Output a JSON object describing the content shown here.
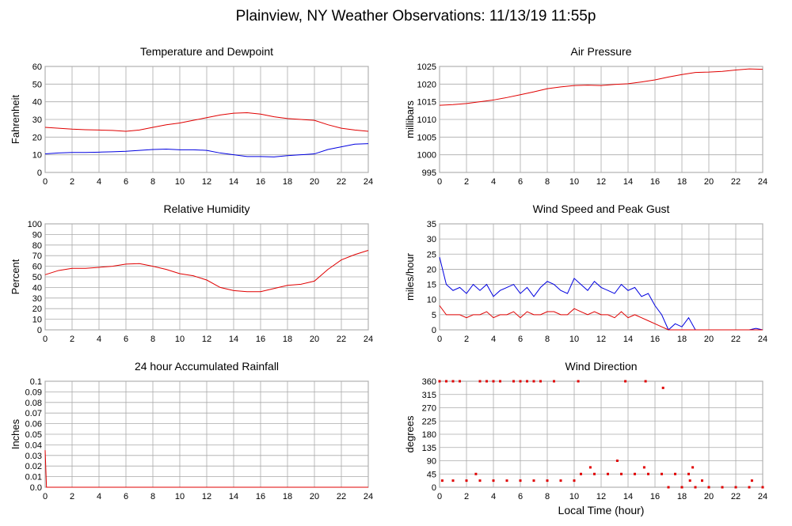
{
  "title": "Plainview, NY Weather Observations: 11/13/19 11:55p",
  "chart_data": [
    {
      "type": "line",
      "title": "Temperature and Dewpoint",
      "ylabel": "Fahrenheit",
      "x": [
        0,
        1,
        2,
        3,
        4,
        5,
        6,
        7,
        8,
        9,
        10,
        11,
        12,
        13,
        14,
        15,
        16,
        17,
        18,
        19,
        20,
        21,
        22,
        23,
        24
      ],
      "series": [
        {
          "color": "#e00000",
          "values": [
            25.5,
            25,
            24.5,
            24.2,
            24,
            23.8,
            23.3,
            24,
            25.5,
            27,
            28,
            29.5,
            31,
            32.5,
            33.5,
            33.8,
            33,
            31.5,
            30.5,
            30,
            29.5,
            27,
            25,
            24,
            23.3
          ]
        },
        {
          "color": "#0000e0",
          "values": [
            10.5,
            11,
            11.3,
            11.3,
            11.5,
            11.7,
            12,
            12.5,
            13,
            13.2,
            12.8,
            12.8,
            12.5,
            11,
            10,
            9,
            9,
            8.8,
            9.5,
            10,
            10.5,
            13,
            14.5,
            16,
            16.3
          ]
        }
      ],
      "xlim": [
        0,
        24
      ],
      "xticks": [
        0,
        2,
        4,
        6,
        8,
        10,
        12,
        14,
        16,
        18,
        20,
        22,
        24
      ],
      "ylim": [
        0,
        60
      ],
      "yticks": [
        0,
        10,
        20,
        30,
        40,
        50,
        60
      ],
      "grid": true
    },
    {
      "type": "line",
      "title": "Air Pressure",
      "ylabel": "millibars",
      "x": [
        0,
        1,
        2,
        3,
        4,
        5,
        6,
        7,
        8,
        9,
        10,
        11,
        12,
        13,
        14,
        15,
        16,
        17,
        18,
        19,
        20,
        21,
        22,
        23,
        24
      ],
      "series": [
        {
          "color": "#e00000",
          "values": [
            1014,
            1014.2,
            1014.5,
            1015,
            1015.5,
            1016.2,
            1017,
            1017.8,
            1018.7,
            1019.2,
            1019.6,
            1019.7,
            1019.6,
            1019.9,
            1020.1,
            1020.6,
            1021.2,
            1022,
            1022.7,
            1023.3,
            1023.4,
            1023.6,
            1024,
            1024.3,
            1024.2
          ]
        }
      ],
      "xlim": [
        0,
        24
      ],
      "xticks": [
        0,
        2,
        4,
        6,
        8,
        10,
        12,
        14,
        16,
        18,
        20,
        22,
        24
      ],
      "ylim": [
        995,
        1025
      ],
      "yticks": [
        995,
        1000,
        1005,
        1010,
        1015,
        1020,
        1025
      ],
      "grid": true
    },
    {
      "type": "line",
      "title": "Relative Humidity",
      "ylabel": "Percent",
      "x": [
        0,
        1,
        2,
        3,
        4,
        5,
        6,
        7,
        8,
        9,
        10,
        11,
        12,
        13,
        14,
        15,
        16,
        17,
        18,
        19,
        20,
        21,
        22,
        23,
        24
      ],
      "series": [
        {
          "color": "#e00000",
          "values": [
            52,
            56,
            58,
            58,
            59,
            60,
            62,
            62.5,
            60,
            57,
            53,
            51,
            47,
            40,
            37,
            36,
            36,
            39,
            42,
            43,
            46,
            57,
            66,
            71,
            75
          ]
        }
      ],
      "xlim": [
        0,
        24
      ],
      "xticks": [
        0,
        2,
        4,
        6,
        8,
        10,
        12,
        14,
        16,
        18,
        20,
        22,
        24
      ],
      "ylim": [
        0,
        100
      ],
      "yticks": [
        0,
        10,
        20,
        30,
        40,
        50,
        60,
        70,
        80,
        90,
        100
      ],
      "grid": true
    },
    {
      "type": "line",
      "title": "Wind Speed and Peak Gust",
      "ylabel": "miles/hour",
      "x": [
        0,
        0.5,
        1,
        1.5,
        2,
        2.5,
        3,
        3.5,
        4,
        4.5,
        5,
        5.5,
        6,
        6.5,
        7,
        7.5,
        8,
        8.5,
        9,
        9.5,
        10,
        10.5,
        11,
        11.5,
        12,
        12.5,
        13,
        13.5,
        14,
        14.5,
        15,
        15.5,
        16,
        16.5,
        17,
        17.5,
        18,
        18.5,
        19,
        19.5,
        20,
        20.5,
        21,
        21.5,
        22,
        22.5,
        23,
        23.5,
        24
      ],
      "series": [
        {
          "color": "#0000e0",
          "values": [
            24,
            15,
            13,
            14,
            12,
            15,
            13,
            15,
            11,
            13,
            14,
            15,
            12,
            14,
            11,
            14,
            16,
            15,
            13,
            12,
            17,
            15,
            13,
            16,
            14,
            13,
            12,
            15,
            13,
            14,
            11,
            12,
            8,
            5,
            0,
            2,
            1,
            4,
            0,
            0,
            0,
            0,
            0,
            0,
            0,
            0,
            0,
            0.5,
            0
          ]
        },
        {
          "color": "#e00000",
          "values": [
            8,
            5,
            5,
            5,
            4,
            5,
            5,
            6,
            4,
            5,
            5,
            6,
            4,
            6,
            5,
            5,
            6,
            6,
            5,
            5,
            7,
            6,
            5,
            6,
            5,
            5,
            4,
            6,
            4,
            5,
            4,
            3,
            2,
            1,
            0,
            0,
            0,
            0,
            0,
            0,
            0,
            0,
            0,
            0,
            0,
            0,
            0,
            0,
            0
          ]
        }
      ],
      "xlim": [
        0,
        24
      ],
      "xticks": [
        0,
        2,
        4,
        6,
        8,
        10,
        12,
        14,
        16,
        18,
        20,
        22,
        24
      ],
      "ylim": [
        0,
        35
      ],
      "yticks": [
        0,
        5,
        10,
        15,
        20,
        25,
        30,
        35
      ],
      "grid": true
    },
    {
      "type": "line",
      "title": "24 hour Accumulated Rainfall",
      "ylabel": "Inches",
      "x": [
        0,
        0.1,
        24
      ],
      "series": [
        {
          "color": "#e00000",
          "values": [
            0.035,
            0,
            0
          ]
        }
      ],
      "xlim": [
        0,
        24
      ],
      "xticks": [
        0,
        2,
        4,
        6,
        8,
        10,
        12,
        14,
        16,
        18,
        20,
        22,
        24
      ],
      "ylim": [
        0,
        0.1
      ],
      "yticks": [
        {
          "value": 0,
          "label": "0.0"
        },
        0.01,
        0.02,
        0.03,
        0.04,
        0.05,
        0.06,
        0.07,
        0.08,
        0.09,
        0.1
      ],
      "grid": true
    },
    {
      "type": "scatter",
      "title": "Wind Direction",
      "ylabel": "degrees",
      "xlabel": "Local Time (hour)",
      "x": [
        0,
        0.5,
        1,
        1.5,
        3,
        3.5,
        4,
        4.5,
        5.5,
        6,
        6.5,
        7,
        7.5,
        8.5,
        10.3,
        13.8,
        15.3,
        0.2,
        1,
        2,
        3,
        4,
        5,
        6,
        7,
        8,
        9,
        10,
        18.6,
        19.5,
        23.2,
        2.7,
        10.5,
        11.5,
        12.5,
        13.5,
        14.5,
        15.5,
        16.5,
        17.5,
        18.5,
        11.2,
        15.2,
        18.8,
        13.2,
        16.6,
        17,
        18,
        19,
        20,
        21,
        22,
        23,
        24
      ],
      "values": [
        360,
        360,
        360,
        360,
        360,
        360,
        360,
        360,
        360,
        360,
        360,
        360,
        360,
        360,
        360,
        360,
        360,
        22.5,
        22.5,
        22.5,
        22.5,
        22.5,
        22.5,
        22.5,
        22.5,
        22.5,
        22.5,
        22.5,
        22.5,
        22.5,
        22.5,
        45,
        45,
        45,
        45,
        45,
        45,
        45,
        45,
        45,
        45,
        67.5,
        67.5,
        67.5,
        90,
        337.5,
        0,
        0,
        0,
        0,
        0,
        0,
        0,
        0
      ],
      "color": "#e00000",
      "xlim": [
        0,
        24
      ],
      "xticks": [
        0,
        2,
        4,
        6,
        8,
        10,
        12,
        14,
        16,
        18,
        20,
        22,
        24
      ],
      "ylim": [
        0,
        360
      ],
      "yticks": [
        0,
        45,
        90,
        135,
        180,
        225,
        270,
        315,
        360
      ],
      "grid": true
    }
  ]
}
